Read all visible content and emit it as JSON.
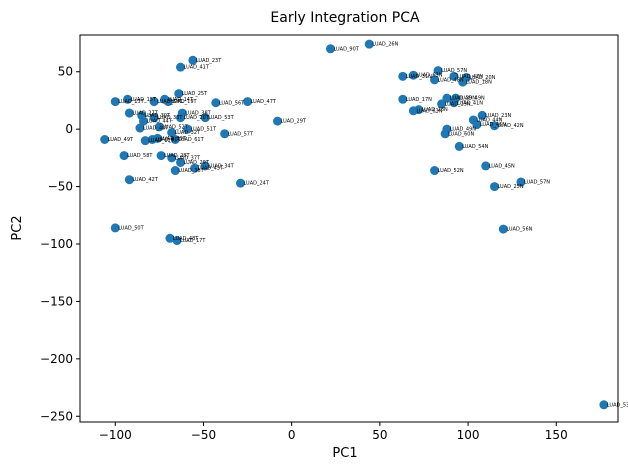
{
  "chart_data": {
    "type": "scatter",
    "title": "Early Integration PCA",
    "xlabel": "PC1",
    "ylabel": "PC2",
    "xlim": [
      -120,
      185
    ],
    "ylim": [
      -255,
      82
    ],
    "xticks": [
      -100,
      -50,
      0,
      50,
      100,
      150
    ],
    "yticks": [
      50,
      0,
      -50,
      -100,
      -150,
      -200,
      -250
    ],
    "grid": false,
    "color": "#1f77b4",
    "points": [
      {
        "label": "LUAD_23T",
        "x": -56,
        "y": 60
      },
      {
        "label": "LUAD_41T",
        "x": -63,
        "y": 54
      },
      {
        "label": "LUAD_25T",
        "x": -64,
        "y": 31
      },
      {
        "label": "LUAD_56T",
        "x": -43,
        "y": 23
      },
      {
        "label": "LUAD_47T",
        "x": -25,
        "y": 24
      },
      {
        "label": "LUAD_13T",
        "x": -100,
        "y": 24
      },
      {
        "label": "LUAD_15T",
        "x": -93,
        "y": 26
      },
      {
        "label": "LUAD_64T",
        "x": -78,
        "y": 24
      },
      {
        "label": "LUAD_14T",
        "x": -72,
        "y": 26
      },
      {
        "label": "LUAD_19T",
        "x": -70,
        "y": 24
      },
      {
        "label": "LUAD_27T",
        "x": -92,
        "y": 14
      },
      {
        "label": "LUAD_30T",
        "x": -85,
        "y": 12
      },
      {
        "label": "LUAD_38T",
        "x": -62,
        "y": 14
      },
      {
        "label": "LUAD_20T",
        "x": -63,
        "y": 10
      },
      {
        "label": "LUAD_53T",
        "x": -49,
        "y": 10
      },
      {
        "label": "LUAD_44T",
        "x": -84,
        "y": 7
      },
      {
        "label": "LUAD_33T",
        "x": -78,
        "y": 10
      },
      {
        "label": "LUAD_40T",
        "x": -86,
        "y": 1
      },
      {
        "label": "LUAD_52T",
        "x": -75,
        "y": 2
      },
      {
        "label": "LUAD_51T",
        "x": -59,
        "y": 0
      },
      {
        "label": "LUAD_57T",
        "x": -38,
        "y": -4
      },
      {
        "label": "LUAD_32T",
        "x": -68,
        "y": -3
      },
      {
        "label": "LUAD_49T",
        "x": -106,
        "y": -9
      },
      {
        "label": "LUAD_11T",
        "x": -83,
        "y": -10
      },
      {
        "label": "LUAD_39T",
        "x": -76,
        "y": -8
      },
      {
        "label": "LUAD_61T",
        "x": -66,
        "y": -9
      },
      {
        "label": "LUAD_60T",
        "x": -79,
        "y": -9
      },
      {
        "label": "LUAD_58T",
        "x": -95,
        "y": -23
      },
      {
        "label": "LUAD_28T",
        "x": -74,
        "y": -23
      },
      {
        "label": "LUAD_37T",
        "x": -68,
        "y": -25
      },
      {
        "label": "LUAD_29T_b",
        "x": -63,
        "y": -29
      },
      {
        "label": "LUAD_34T",
        "x": -49,
        "y": -32
      },
      {
        "label": "LUAD_43T",
        "x": -55,
        "y": -34
      },
      {
        "label": "LUAD_36T",
        "x": -66,
        "y": -36
      },
      {
        "label": "LUAD_29T",
        "x": -8,
        "y": 7
      },
      {
        "label": "LUAD_24T",
        "x": -29,
        "y": -47
      },
      {
        "label": "LUAD_42T",
        "x": -92,
        "y": -44
      },
      {
        "label": "LUAD_50T",
        "x": -100,
        "y": -86
      },
      {
        "label": "LUAD_48T",
        "x": -69,
        "y": -95
      },
      {
        "label": "LUAD_17T",
        "x": -65,
        "y": -97
      },
      {
        "label": "LUAD_90T",
        "x": 22,
        "y": 70
      },
      {
        "label": "LUAD_26N",
        "x": 44,
        "y": 74
      },
      {
        "label": "LUAD_31N",
        "x": 63,
        "y": 46
      },
      {
        "label": "LUAD_57N",
        "x": 83,
        "y": 51
      },
      {
        "label": "LUAD_63N",
        "x": 69,
        "y": 47
      },
      {
        "label": "LUAD_48N",
        "x": 81,
        "y": 43
      },
      {
        "label": "LUAD_20N",
        "x": 99,
        "y": 45
      },
      {
        "label": "LUAD_47N",
        "x": 92,
        "y": 46
      },
      {
        "label": "LUAD_18N",
        "x": 97,
        "y": 41
      },
      {
        "label": "LUAD_17N",
        "x": 63,
        "y": 26
      },
      {
        "label": "LUAD_39N",
        "x": 88,
        "y": 27
      },
      {
        "label": "LUAD_49N",
        "x": 93,
        "y": 27
      },
      {
        "label": "LUAD_41N",
        "x": 92,
        "y": 23
      },
      {
        "label": "LUAD_19N",
        "x": 85,
        "y": 22
      },
      {
        "label": "LUAD_28N",
        "x": 72,
        "y": 17
      },
      {
        "label": "LUAD_63N_b",
        "x": 69,
        "y": 16
      },
      {
        "label": "LUAD_23N",
        "x": 108,
        "y": 12
      },
      {
        "label": "LUAD_44N",
        "x": 103,
        "y": 8
      },
      {
        "label": "LUAD_42N",
        "x": 115,
        "y": 3
      },
      {
        "label": "LUAD_46N",
        "x": 105,
        "y": 4
      },
      {
        "label": "LUAD_49N_b",
        "x": 88,
        "y": 0
      },
      {
        "label": "LUAD_60N",
        "x": 87,
        "y": -4
      },
      {
        "label": "LUAD_54N",
        "x": 95,
        "y": -15
      },
      {
        "label": "LUAD_45N",
        "x": 110,
        "y": -32
      },
      {
        "label": "LUAD_52N",
        "x": 81,
        "y": -36
      },
      {
        "label": "LUAD_57N_b",
        "x": 130,
        "y": -46
      },
      {
        "label": "LUAD_25N",
        "x": 115,
        "y": -50
      },
      {
        "label": "LUAD_56N",
        "x": 120,
        "y": -87
      },
      {
        "label": "LUAD_53N",
        "x": 177,
        "y": -240
      }
    ]
  }
}
